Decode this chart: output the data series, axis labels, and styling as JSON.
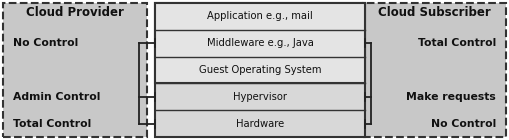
{
  "fig_width": 5.09,
  "fig_height": 1.4,
  "dpi": 100,
  "bg_color": "#ffffff",
  "panel_bg": "#c8c8c8",
  "stack_outer_bg": "#d8d8d8",
  "stack_inner_bg": "#e4e4e4",
  "stack_layers": [
    "Application e.g., mail",
    "Middleware e.g., Java",
    "Guest Operating System",
    "Hypervisor",
    "Hardware"
  ],
  "provider_label": "Cloud Provider",
  "subscriber_label": "Cloud Subscriber",
  "provider_items": [
    {
      "text": "No Control",
      "row": 1.5
    },
    {
      "text": "Admin Control",
      "row": 1.0
    },
    {
      "text": "Total Control",
      "row": 0.0
    }
  ],
  "subscriber_items": [
    {
      "text": "Total Control",
      "row": 1.5
    },
    {
      "text": "Make requests",
      "row": 1.0
    },
    {
      "text": "No Control",
      "row": 0.0
    }
  ],
  "line_color": "#222222",
  "text_color": "#111111",
  "border_color": "#333333",
  "layer_font_size": 7.2,
  "label_font_size": 7.8,
  "header_font_size": 8.5
}
